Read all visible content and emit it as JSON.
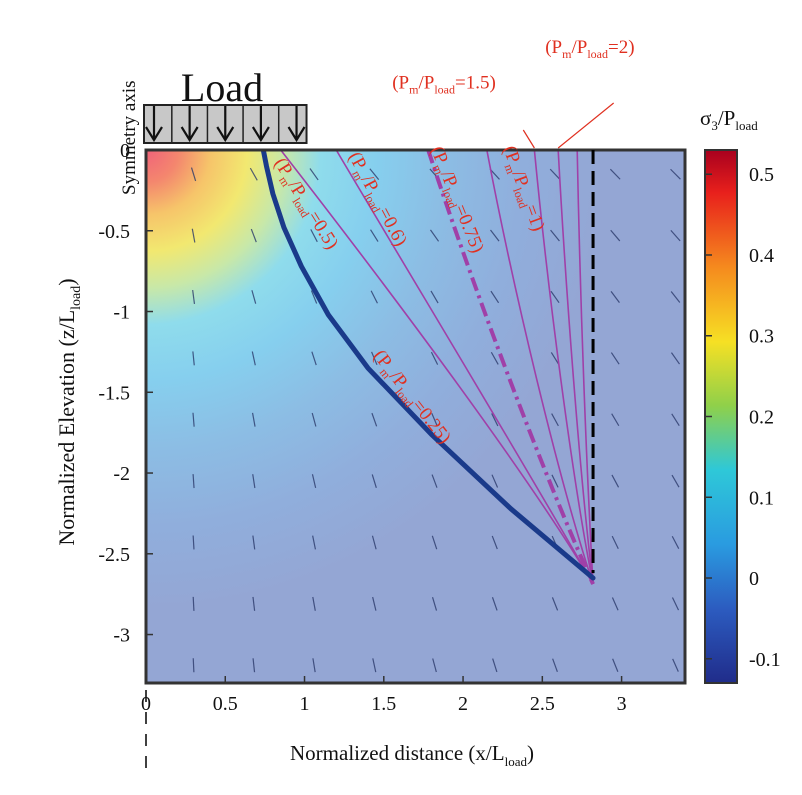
{
  "chart_data": {
    "type": "heatmap",
    "xlabel": "Normalized distance (x/L",
    "xlabel_sub": "load",
    "xlabel_tail": ")",
    "ylabel": "Normalized Elevation (z/L",
    "ylabel_sub": "load",
    "ylabel_tail": ")",
    "xlim": [
      0,
      3.4
    ],
    "ylim": [
      -3.3,
      0
    ],
    "x_ticks": [
      0,
      0.5,
      1,
      1.5,
      2,
      2.5,
      3
    ],
    "x_tick_labels": [
      "0",
      "0.5",
      "1",
      "1.5",
      "2",
      "2.5",
      "3"
    ],
    "y_ticks": [
      0,
      -0.5,
      -1,
      -1.5,
      -2,
      -2.5,
      -3
    ],
    "y_tick_labels": [
      "0",
      "-0.5",
      "-1",
      "-1.5",
      "-2",
      "-2.5",
      "-3"
    ],
    "colorbar": {
      "title": "σ",
      "title_sub1": "3",
      "title_mid": "/P",
      "title_sub2": "load",
      "range": [
        -0.13,
        0.53
      ],
      "ticks": [
        0.5,
        0.4,
        0.3,
        0.2,
        0.1,
        0,
        -0.1
      ],
      "tick_labels": [
        "0.5",
        "0.4",
        "0.3",
        "0.2",
        "0.1",
        "0",
        "-0.1"
      ]
    },
    "annotations": {
      "load_label": "Load",
      "symmetry_label": "Symmetry axis",
      "load_extent_x": [
        0,
        1
      ],
      "load_arrow_count": 5,
      "vertical_dashed_line_x": 2.82
    },
    "fracture_path": {
      "name": "fracture path",
      "x": [
        2.82,
        2.3,
        1.8,
        1.4,
        1.15,
        0.98,
        0.87,
        0.8,
        0.76,
        0.74
      ],
      "y": [
        -2.65,
        -2.22,
        -1.76,
        -1.35,
        -1.02,
        -0.72,
        -0.48,
        -0.27,
        -0.1,
        0
      ]
    },
    "series": [
      {
        "name": "(P",
        "sub1": "m",
        "mid": "/P",
        "sub2": "load",
        "tail": "=0.5)",
        "surface_x": 0.85,
        "style": "solid",
        "label_x": 0.98,
        "label_y": -0.35,
        "label_angle": 58
      },
      {
        "name": "(P",
        "sub1": "m",
        "mid": "/P",
        "sub2": "load",
        "tail": "=0.6)",
        "surface_x": 1.2,
        "style": "solid",
        "label_x": 1.43,
        "label_y": -0.32,
        "label_angle": 62
      },
      {
        "name": "(P",
        "sub1": "m",
        "mid": "/P",
        "sub2": "load",
        "tail": "=0.75)",
        "surface_x": 1.78,
        "style": "dashdot",
        "label_x": 1.93,
        "label_y": -0.32,
        "label_angle": 68
      },
      {
        "name": "(P",
        "sub1": "m",
        "mid": "/P",
        "sub2": "load",
        "tail": "=1)",
        "surface_x": 2.15,
        "style": "solid",
        "label_x": 2.35,
        "label_y": -0.25,
        "label_angle": 70
      },
      {
        "name": "(P",
        "sub1": "m",
        "mid": "/P",
        "sub2": "load",
        "tail": "=0.25)",
        "surface_x": 0.74,
        "style": "none",
        "label_x": 1.65,
        "label_y": -1.55,
        "label_angle": 52
      },
      {
        "name": "(P",
        "sub1": "m",
        "mid": "/P",
        "sub2": "load",
        "tail": "=1.5)",
        "surface_x": 2.45,
        "style": "solid",
        "label_x": 1.88,
        "label_y": 0.38,
        "label_angle": 0
      },
      {
        "name": "(P",
        "sub1": "m",
        "mid": "/P",
        "sub2": "load",
        "tail": "=2)",
        "surface_x": 2.6,
        "style": "solid",
        "label_x": 2.8,
        "label_y": 0.6,
        "label_angle": 0
      }
    ],
    "colors": {
      "curve": "#a040a8",
      "label": "#e03020",
      "fracture": "#1a3a8a",
      "background_field": "#94a6d4",
      "frame": "#333333"
    },
    "grid": false
  }
}
